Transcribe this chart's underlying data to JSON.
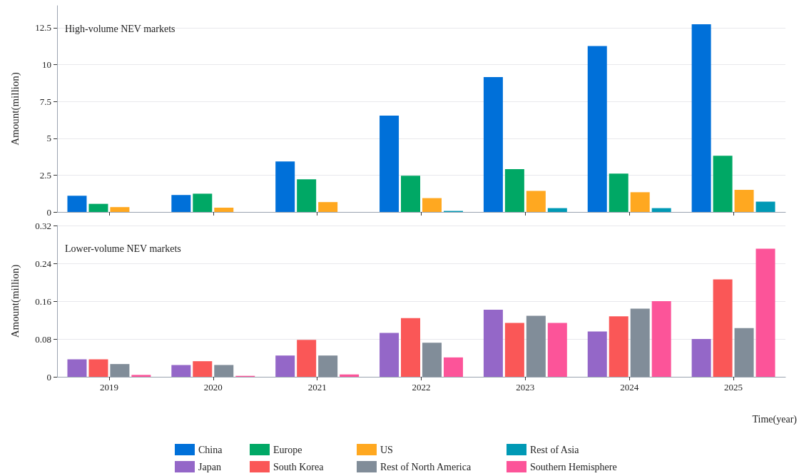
{
  "chart_data": [
    {
      "type": "bar",
      "title": "High-volume NEV markets",
      "ylabel": "Amount(million)",
      "categories": [
        "2019",
        "2020",
        "2021",
        "2022",
        "2023",
        "2024",
        "2025"
      ],
      "series": [
        {
          "name": "China",
          "color": "#0070d9",
          "values": [
            1.1,
            1.15,
            3.43,
            6.54,
            9.15,
            11.26,
            12.74
          ]
        },
        {
          "name": "Europe",
          "color": "#00a865",
          "values": [
            0.55,
            1.24,
            2.22,
            2.46,
            2.91,
            2.6,
            3.82
          ]
        },
        {
          "name": "US",
          "color": "#ffa820",
          "values": [
            0.33,
            0.29,
            0.67,
            0.94,
            1.43,
            1.34,
            1.5
          ]
        },
        {
          "name": "Rest of Asia",
          "color": "#0099b5",
          "values": [
            0,
            0,
            null,
            0.07,
            0.26,
            0.26,
            0.7
          ]
        }
      ],
      "ylim": [
        0,
        14
      ],
      "yticks": [
        0,
        2.5,
        5,
        7.5,
        10,
        12.5
      ],
      "grid": "y",
      "legend": "bottom",
      "tick_labels": "y"
    },
    {
      "type": "bar",
      "title": "Lower-volume NEV markets",
      "ylabel": "Amount(million)",
      "xlabel": "Time(year)",
      "categories": [
        "2019",
        "2020",
        "2021",
        "2022",
        "2023",
        "2024",
        "2025"
      ],
      "series": [
        {
          "name": "Japan",
          "color": "#9467c8",
          "values": [
            0.037,
            0.025,
            0.045,
            0.093,
            0.142,
            0.096,
            0.08
          ]
        },
        {
          "name": "South Korea",
          "color": "#fa5757",
          "values": [
            0.037,
            0.033,
            0.078,
            0.124,
            0.114,
            0.128,
            0.206
          ]
        },
        {
          "name": "Rest of North America",
          "color": "#818d99",
          "values": [
            0.027,
            0.025,
            0.045,
            0.072,
            0.129,
            0.144,
            0.103
          ]
        },
        {
          "name": "Southern Hemisphere",
          "color": "#fc5499",
          "values": [
            0.004,
            0.002,
            0.005,
            0.041,
            0.114,
            0.16,
            0.271
          ]
        }
      ],
      "ylim": [
        0,
        0.32
      ],
      "yticks": [
        0,
        0.08,
        0.16,
        0.24,
        0.32
      ],
      "grid": "y",
      "legend": "bottom"
    }
  ]
}
